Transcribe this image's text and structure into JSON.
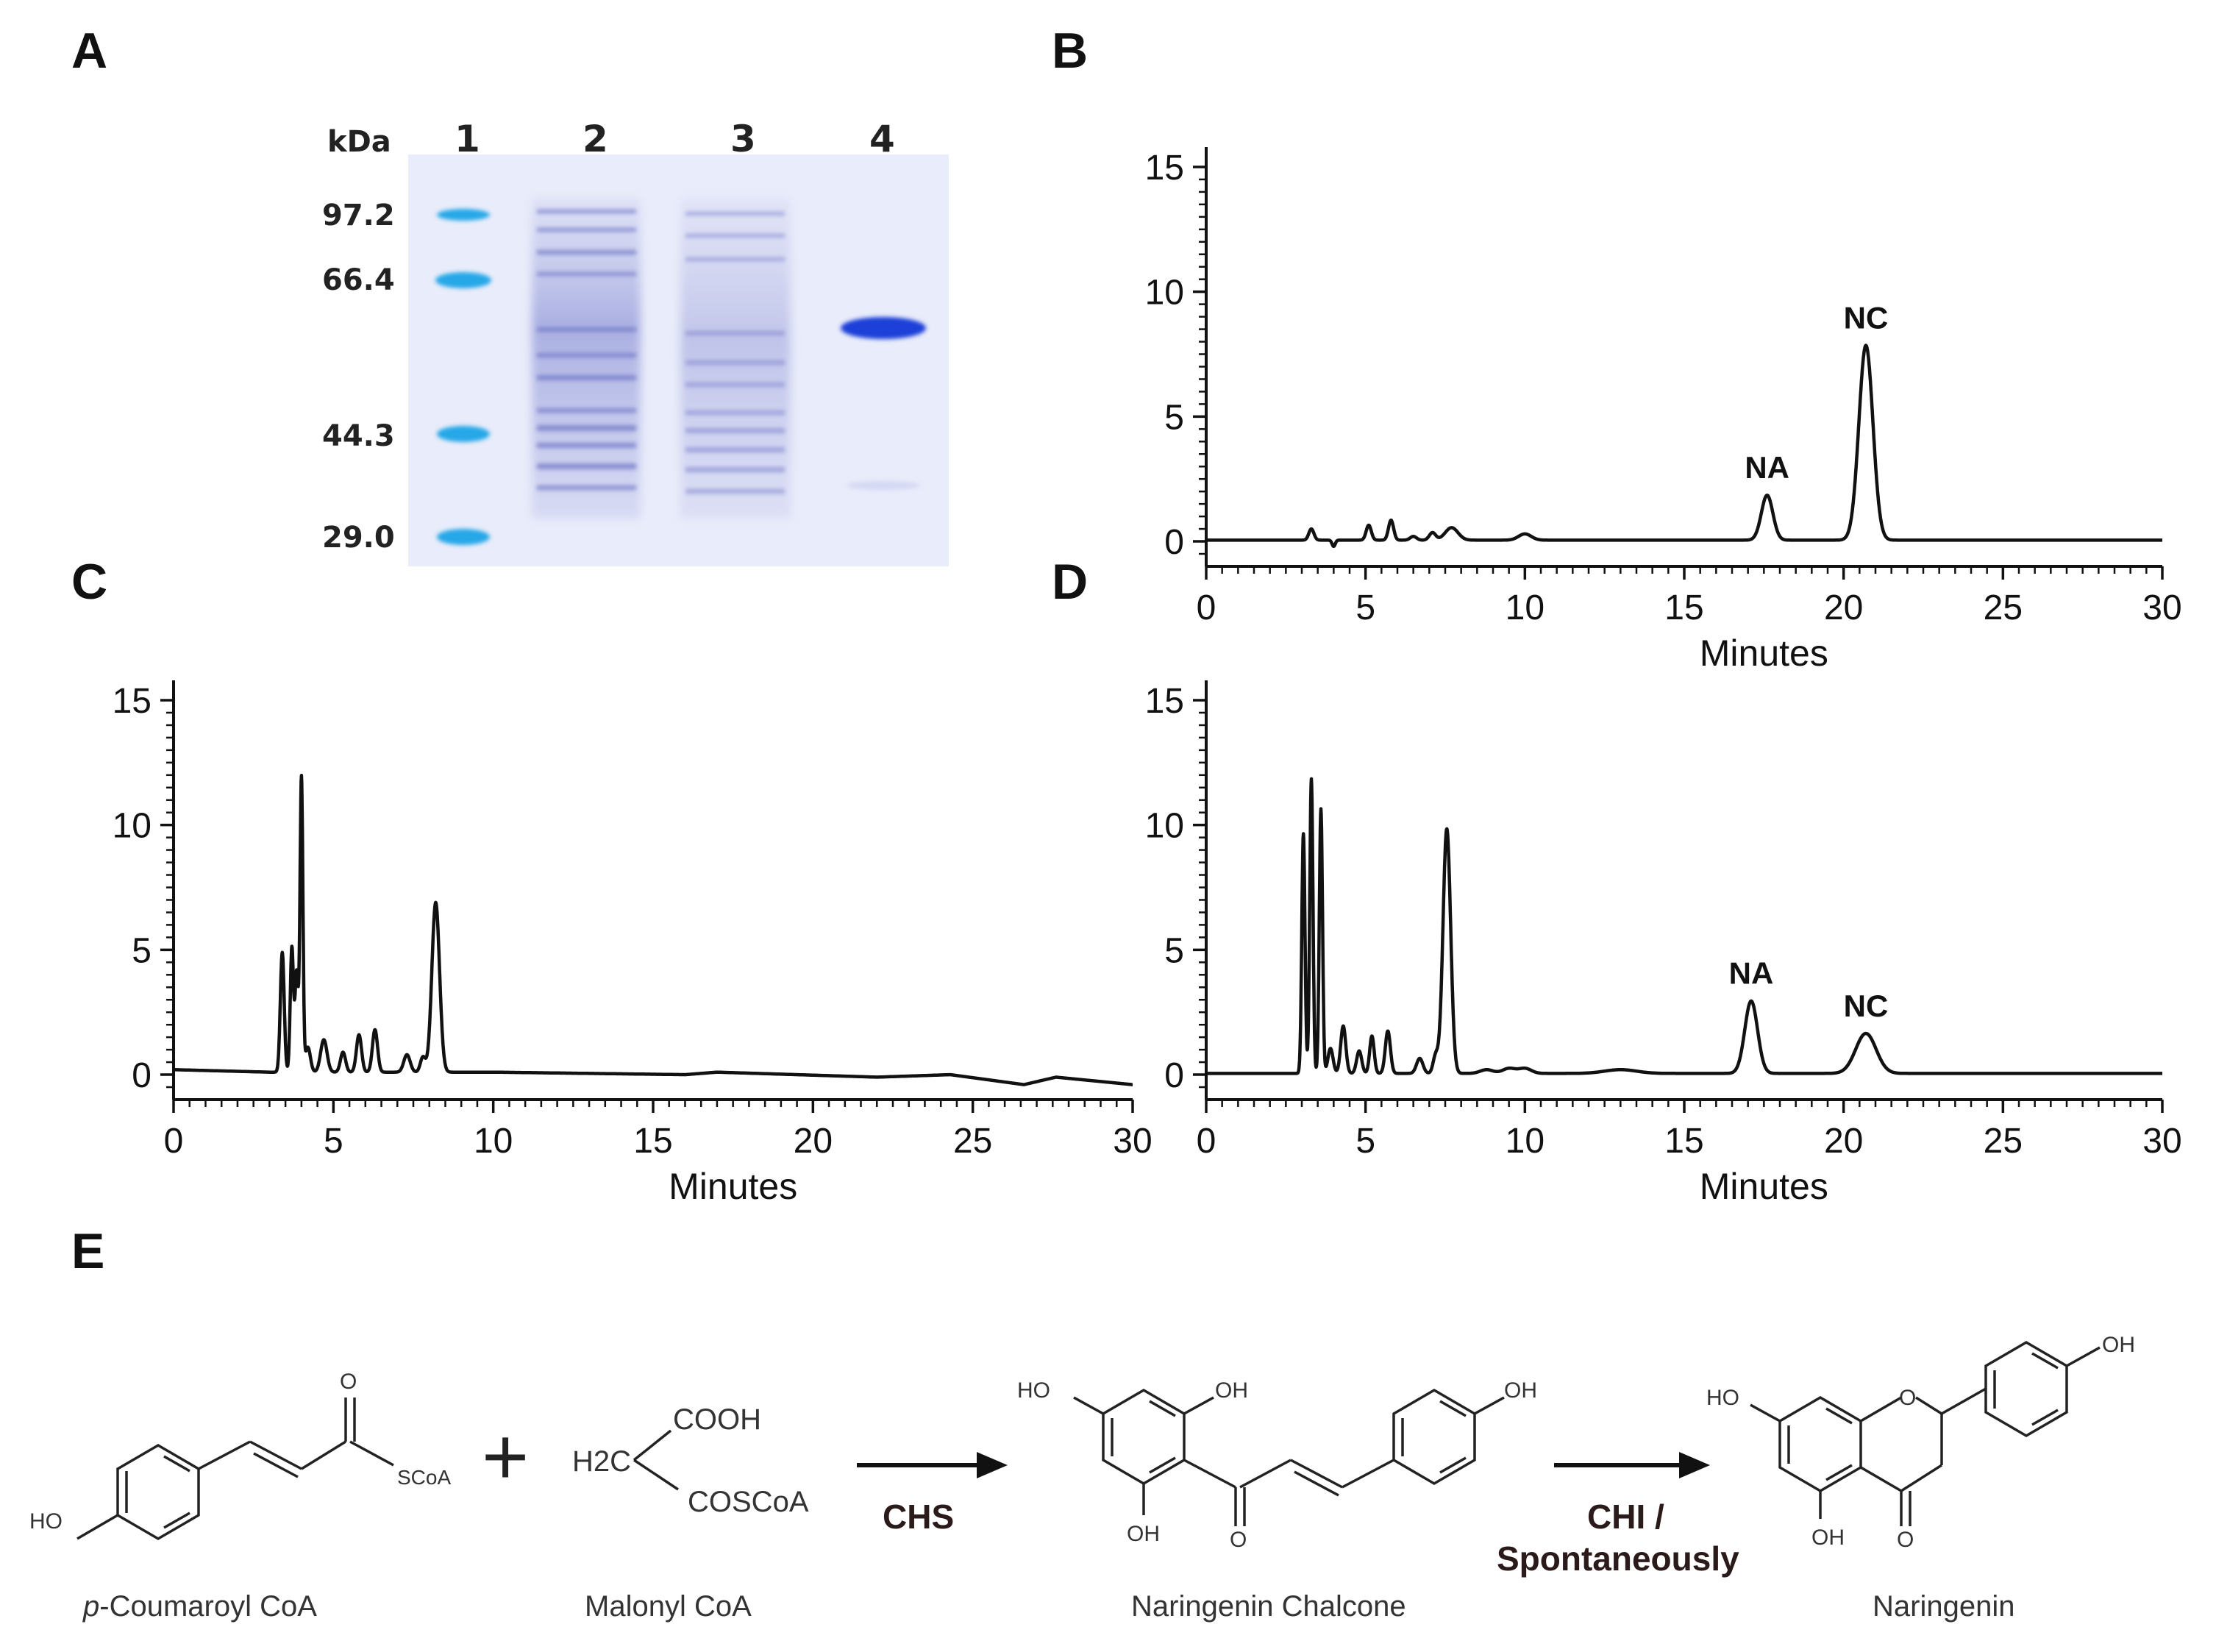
{
  "panels": {
    "a": "A",
    "b": "B",
    "c": "C",
    "d": "D",
    "e": "E"
  },
  "gel": {
    "kda_label": "kDa",
    "lanes": [
      "1",
      "2",
      "3",
      "4"
    ],
    "markers": [
      "97.2",
      "66.4",
      "44.3",
      "29.0"
    ],
    "colors": {
      "background": "#e8ecfa",
      "marker": "#26a6e6",
      "band": "#1a3fd6",
      "smear": "#7f86d0"
    }
  },
  "chart_data": [
    {
      "panel": "B",
      "type": "line",
      "xlabel": "Minutes",
      "ylabel": "",
      "xlim": [
        0,
        30
      ],
      "ylim": [
        -1,
        15.5
      ],
      "xticks": [
        "0",
        "5",
        "10",
        "15",
        "20",
        "25",
        "30"
      ],
      "yticks": [
        "0",
        "5",
        "10",
        "15"
      ],
      "peaks": [
        {
          "x": 3.3,
          "y": 0.45,
          "w": 0.08
        },
        {
          "x": 4.0,
          "y": -0.25,
          "w": 0.05
        },
        {
          "x": 5.1,
          "y": 0.6,
          "w": 0.08
        },
        {
          "x": 5.8,
          "y": 0.8,
          "w": 0.08
        },
        {
          "x": 6.5,
          "y": 0.15,
          "w": 0.1
        },
        {
          "x": 7.1,
          "y": 0.3,
          "w": 0.1
        },
        {
          "x": 7.7,
          "y": 0.5,
          "w": 0.2
        },
        {
          "x": 10.0,
          "y": 0.25,
          "w": 0.2
        },
        {
          "x": 17.6,
          "y": 1.8,
          "w": 0.18
        },
        {
          "x": 20.7,
          "y": 7.8,
          "w": 0.22
        }
      ],
      "labels": [
        {
          "text": "NA",
          "x": 17.6,
          "y": 1.8
        },
        {
          "text": "NC",
          "x": 20.7,
          "y": 7.8
        }
      ]
    },
    {
      "panel": "C",
      "type": "line",
      "xlabel": "Minutes",
      "ylabel": "",
      "xlim": [
        0,
        30
      ],
      "ylim": [
        -1,
        15.5
      ],
      "xticks": [
        "0",
        "5",
        "10",
        "15",
        "20",
        "25",
        "30"
      ],
      "yticks": [
        "0",
        "5",
        "10",
        "15"
      ],
      "peaks": [
        {
          "x": 3.4,
          "y": 4.8,
          "w": 0.06
        },
        {
          "x": 3.7,
          "y": 5.0,
          "w": 0.05
        },
        {
          "x": 3.85,
          "y": 4.0,
          "w": 0.05
        },
        {
          "x": 4.0,
          "y": 11.8,
          "w": 0.045
        },
        {
          "x": 4.2,
          "y": 1.0,
          "w": 0.08
        },
        {
          "x": 4.7,
          "y": 1.3,
          "w": 0.1
        },
        {
          "x": 5.3,
          "y": 0.8,
          "w": 0.08
        },
        {
          "x": 5.8,
          "y": 1.5,
          "w": 0.08
        },
        {
          "x": 6.3,
          "y": 1.7,
          "w": 0.08
        },
        {
          "x": 7.3,
          "y": 0.7,
          "w": 0.1
        },
        {
          "x": 7.8,
          "y": 0.6,
          "w": 0.08
        },
        {
          "x": 8.2,
          "y": 6.8,
          "w": 0.12
        }
      ],
      "baseline": [
        [
          0,
          0.2
        ],
        [
          3,
          0.1
        ],
        [
          10,
          0.1
        ],
        [
          16,
          0.0
        ],
        [
          17,
          0.1
        ],
        [
          22,
          -0.1
        ],
        [
          24.3,
          0.0
        ],
        [
          26.6,
          -0.4
        ],
        [
          27.6,
          -0.1
        ],
        [
          30,
          -0.4
        ]
      ],
      "labels": []
    },
    {
      "panel": "D",
      "type": "line",
      "xlabel": "Minutes",
      "ylabel": "",
      "xlim": [
        0,
        30
      ],
      "ylim": [
        -1,
        15.5
      ],
      "xticks": [
        "0",
        "5",
        "10",
        "15",
        "20",
        "25",
        "30"
      ],
      "yticks": [
        "0",
        "5",
        "10",
        "15"
      ],
      "peaks": [
        {
          "x": 3.05,
          "y": 9.6,
          "w": 0.05
        },
        {
          "x": 3.3,
          "y": 11.8,
          "w": 0.05
        },
        {
          "x": 3.6,
          "y": 10.6,
          "w": 0.05
        },
        {
          "x": 3.9,
          "y": 1.0,
          "w": 0.08
        },
        {
          "x": 4.3,
          "y": 1.9,
          "w": 0.08
        },
        {
          "x": 4.8,
          "y": 0.9,
          "w": 0.08
        },
        {
          "x": 5.2,
          "y": 1.5,
          "w": 0.07
        },
        {
          "x": 5.7,
          "y": 1.7,
          "w": 0.08
        },
        {
          "x": 6.7,
          "y": 0.6,
          "w": 0.1
        },
        {
          "x": 7.2,
          "y": 0.7,
          "w": 0.08
        },
        {
          "x": 7.55,
          "y": 9.8,
          "w": 0.12
        },
        {
          "x": 8.8,
          "y": 0.15,
          "w": 0.2
        },
        {
          "x": 9.5,
          "y": 0.2,
          "w": 0.2
        },
        {
          "x": 10.0,
          "y": 0.2,
          "w": 0.2
        },
        {
          "x": 13.0,
          "y": 0.15,
          "w": 0.5
        },
        {
          "x": 17.1,
          "y": 2.9,
          "w": 0.2
        },
        {
          "x": 20.7,
          "y": 1.6,
          "w": 0.32
        }
      ],
      "labels": [
        {
          "text": "NA",
          "x": 17.1,
          "y": 2.9
        },
        {
          "text": "NC",
          "x": 20.7,
          "y": 1.6
        }
      ]
    }
  ],
  "reaction": {
    "reactant1_name": "p-Coumaroyl CoA",
    "reactant1_prefix": "p",
    "reactant1_suffix": "-Coumaroyl CoA",
    "reactant2_name": "Malonyl CoA",
    "product1_name": "Naringenin Chalcone",
    "product2_name": "Naringenin",
    "plus": "+",
    "enzyme1": "CHS",
    "enzyme2_line1": "CHI /",
    "enzyme2_line2": "Spontaneously",
    "atoms": {
      "ho": "HO",
      "oh": "OH",
      "o": "O",
      "scoa": "SCoA",
      "cooh": "COOH",
      "coscoa": "COSCoA",
      "h2c": "H2C"
    }
  }
}
